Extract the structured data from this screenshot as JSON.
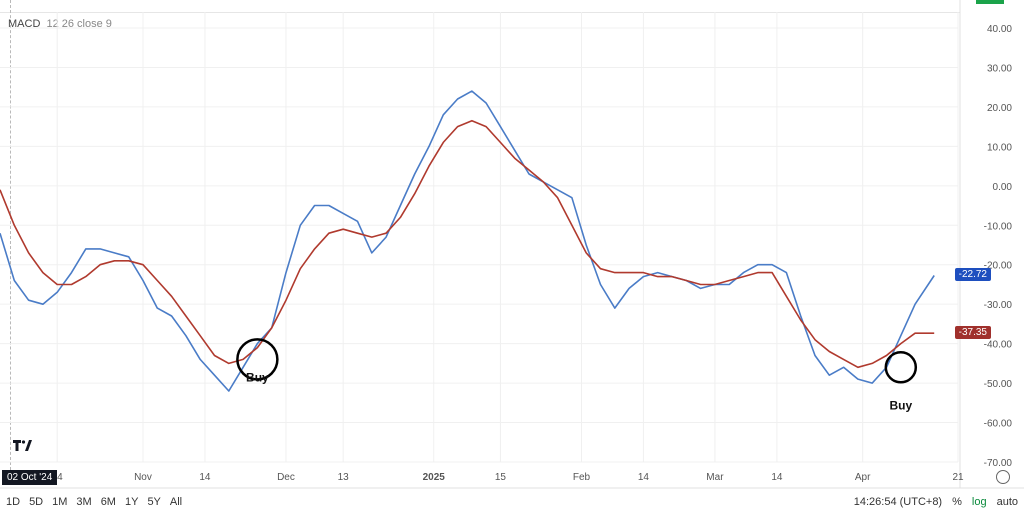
{
  "indicator": {
    "name": "MACD",
    "params": "12 26 close 9"
  },
  "badges": {
    "macd_value": "-22.72",
    "signal_value": "-37.35",
    "macd_color": "#1e4fbf",
    "signal_color": "#a0302c"
  },
  "annotations": {
    "buy1": "Buy",
    "buy2": "Buy"
  },
  "date_badge": "02 Oct '24",
  "timeframes": [
    "1D",
    "5D",
    "1M",
    "3M",
    "6M",
    "1Y",
    "5Y",
    "All"
  ],
  "status": {
    "time": "14:26:54 (UTC+8)",
    "percent": "%",
    "log": "log",
    "auto": "auto"
  },
  "colors": {
    "macd_line": "#4a7cc7",
    "signal_line": "#b03a2e",
    "axis_text": "#555555",
    "grid": "#f0f0f0"
  },
  "chart_data": {
    "type": "line",
    "ylim": [
      -70,
      40
    ],
    "y_ticks": [
      "40.00",
      "30.00",
      "20.00",
      "10.00",
      "0.00",
      "-10.00",
      "-20.00",
      "-30.00",
      "-40.00",
      "-50.00",
      "-60.00",
      "-70.00"
    ],
    "x_tick_labels": [
      "14",
      "Nov",
      "14",
      "Dec",
      "13",
      "2025",
      "15",
      "Feb",
      "14",
      "Mar",
      "14",
      "Apr",
      "21"
    ],
    "grid": true,
    "series": [
      {
        "name": "MACD",
        "x": [
          "2024-10-02",
          "2024-10-05",
          "2024-10-08",
          "2024-10-11",
          "2024-10-14",
          "2024-10-17",
          "2024-10-20",
          "2024-10-23",
          "2024-10-26",
          "2024-10-29",
          "2024-11-01",
          "2024-11-04",
          "2024-11-07",
          "2024-11-10",
          "2024-11-13",
          "2024-11-16",
          "2024-11-19",
          "2024-11-22",
          "2024-11-25",
          "2024-11-28",
          "2024-12-01",
          "2024-12-04",
          "2024-12-07",
          "2024-12-10",
          "2024-12-13",
          "2024-12-16",
          "2024-12-19",
          "2024-12-22",
          "2024-12-25",
          "2024-12-28",
          "2024-12-31",
          "2025-01-03",
          "2025-01-06",
          "2025-01-09",
          "2025-01-12",
          "2025-01-15",
          "2025-01-18",
          "2025-01-21",
          "2025-01-24",
          "2025-01-27",
          "2025-01-30",
          "2025-02-02",
          "2025-02-05",
          "2025-02-08",
          "2025-02-11",
          "2025-02-14",
          "2025-02-17",
          "2025-02-20",
          "2025-02-23",
          "2025-02-26",
          "2025-03-01",
          "2025-03-04",
          "2025-03-07",
          "2025-03-10",
          "2025-03-13",
          "2025-03-16",
          "2025-03-19",
          "2025-03-22",
          "2025-03-25",
          "2025-03-28",
          "2025-03-31",
          "2025-04-03",
          "2025-04-06",
          "2025-04-09",
          "2025-04-12",
          "2025-04-16"
        ],
        "values": [
          -12,
          -24,
          -29,
          -30,
          -27,
          -22,
          -16,
          -16,
          -17,
          -18,
          -24,
          -31,
          -33,
          -38,
          -44,
          -48,
          -52,
          -46,
          -40,
          -36,
          -22,
          -10,
          -5,
          -5,
          -7,
          -9,
          -17,
          -13,
          -5,
          3,
          10,
          18,
          22,
          24,
          21,
          15,
          9,
          3,
          1,
          -1,
          -3,
          -15,
          -25,
          -31,
          -26,
          -23,
          -22,
          -23,
          -24,
          -26,
          -25,
          -25,
          -22,
          -20,
          -20,
          -22,
          -33,
          -43,
          -48,
          -46,
          -49,
          -50,
          -46,
          -38,
          -30,
          -22.72
        ]
      },
      {
        "name": "Signal",
        "x": [
          "2024-10-02",
          "2024-10-05",
          "2024-10-08",
          "2024-10-11",
          "2024-10-14",
          "2024-10-17",
          "2024-10-20",
          "2024-10-23",
          "2024-10-26",
          "2024-10-29",
          "2024-11-01",
          "2024-11-04",
          "2024-11-07",
          "2024-11-10",
          "2024-11-13",
          "2024-11-16",
          "2024-11-19",
          "2024-11-22",
          "2024-11-25",
          "2024-11-28",
          "2024-12-01",
          "2024-12-04",
          "2024-12-07",
          "2024-12-10",
          "2024-12-13",
          "2024-12-16",
          "2024-12-19",
          "2024-12-22",
          "2024-12-25",
          "2024-12-28",
          "2024-12-31",
          "2025-01-03",
          "2025-01-06",
          "2025-01-09",
          "2025-01-12",
          "2025-01-15",
          "2025-01-18",
          "2025-01-21",
          "2025-01-24",
          "2025-01-27",
          "2025-01-30",
          "2025-02-02",
          "2025-02-05",
          "2025-02-08",
          "2025-02-11",
          "2025-02-14",
          "2025-02-17",
          "2025-02-20",
          "2025-02-23",
          "2025-02-26",
          "2025-03-01",
          "2025-03-04",
          "2025-03-07",
          "2025-03-10",
          "2025-03-13",
          "2025-03-16",
          "2025-03-19",
          "2025-03-22",
          "2025-03-25",
          "2025-03-28",
          "2025-03-31",
          "2025-04-03",
          "2025-04-06",
          "2025-04-09",
          "2025-04-12",
          "2025-04-16"
        ],
        "values": [
          -1,
          -10,
          -17,
          -22,
          -25,
          -25,
          -23,
          -20,
          -19,
          -19,
          -20,
          -24,
          -28,
          -33,
          -38,
          -43,
          -45,
          -44,
          -41,
          -36,
          -29,
          -21,
          -16,
          -12,
          -11,
          -12,
          -13,
          -12,
          -8,
          -2,
          5,
          11,
          15,
          16.5,
          15,
          11,
          7,
          4,
          1,
          -3,
          -10,
          -17,
          -21,
          -22,
          -22,
          -22,
          -23,
          -23,
          -24,
          -25,
          -25,
          -24,
          -23,
          -22,
          -22,
          -28,
          -34,
          -39,
          -42,
          -44,
          -46,
          -45,
          -43,
          -40,
          -37.35,
          -37.35
        ]
      }
    ],
    "annotations": [
      {
        "text": "Buy",
        "x": "2024-11-25",
        "y": -44
      },
      {
        "text": "Buy",
        "x": "2025-04-09",
        "y": -46
      }
    ]
  }
}
